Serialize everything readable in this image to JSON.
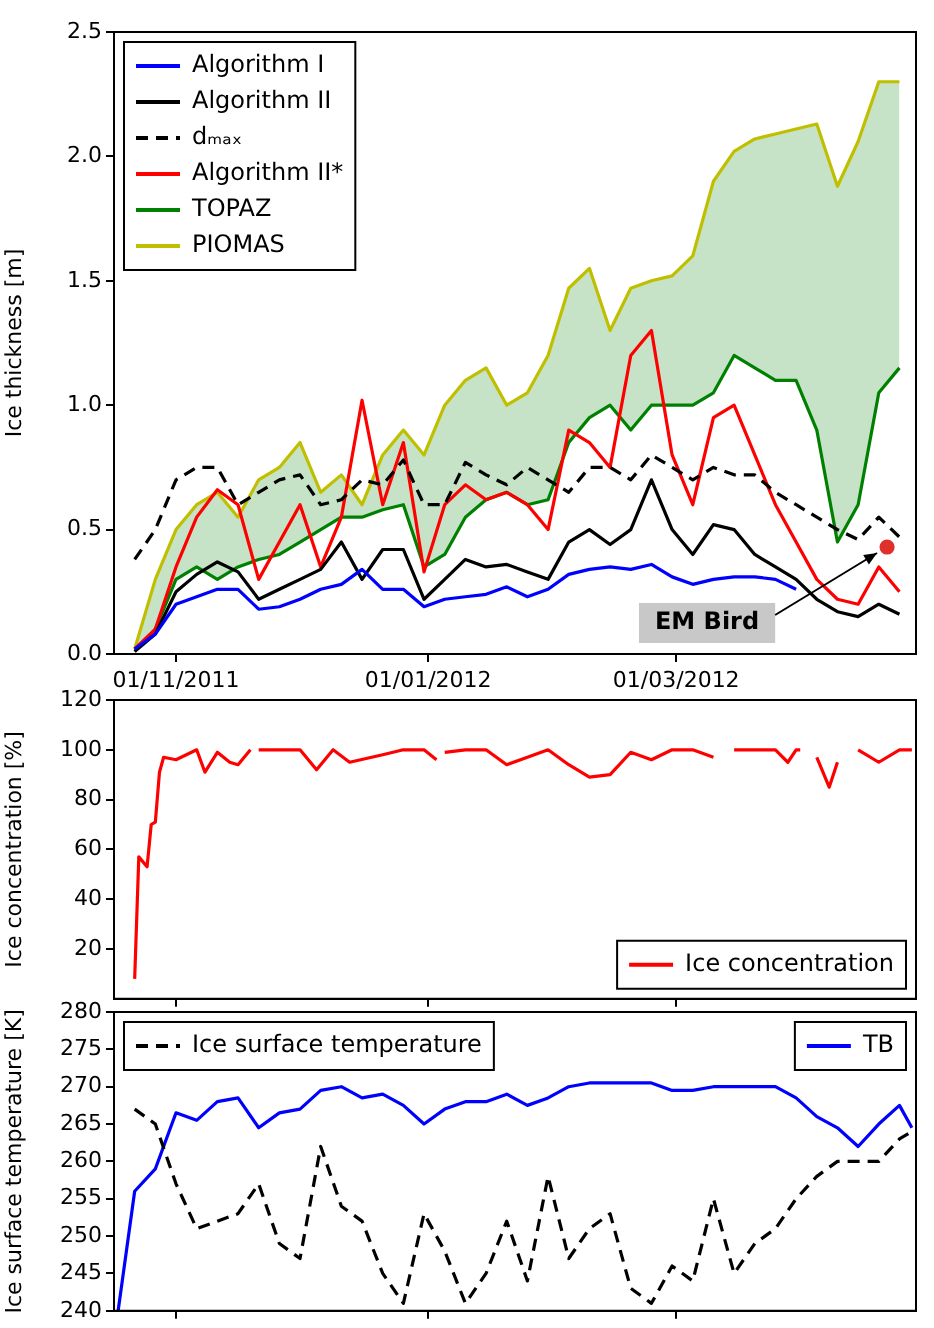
{
  "chart_data": [
    {
      "type": "line",
      "ylabel": "Ice thickness [m]",
      "x": [
        "2011-10-22",
        "2011-10-27",
        "2011-11-01",
        "2011-11-06",
        "2011-11-11",
        "2011-11-16",
        "2011-11-21",
        "2011-11-26",
        "2011-12-01",
        "2011-12-06",
        "2011-12-11",
        "2011-12-16",
        "2011-12-21",
        "2011-12-26",
        "2011-12-31",
        "2012-01-05",
        "2012-01-10",
        "2012-01-15",
        "2012-01-20",
        "2012-01-25",
        "2012-01-30",
        "2012-02-04",
        "2012-02-09",
        "2012-02-14",
        "2012-02-19",
        "2012-02-24",
        "2012-02-29",
        "2012-03-05",
        "2012-03-10",
        "2012-03-15",
        "2012-03-20",
        "2012-03-25",
        "2012-03-30",
        "2012-04-04",
        "2012-04-09",
        "2012-04-14",
        "2012-04-19",
        "2012-04-24"
      ],
      "series": [
        {
          "name": "Algorithm I",
          "color": "#0000ff",
          "values": [
            0.02,
            0.08,
            0.2,
            0.23,
            0.26,
            0.26,
            0.18,
            0.19,
            0.22,
            0.26,
            0.28,
            0.34,
            0.26,
            0.26,
            0.19,
            0.22,
            0.23,
            0.24,
            0.27,
            0.23,
            0.26,
            0.32,
            0.34,
            0.35,
            0.34,
            0.36,
            0.31,
            0.28,
            0.3,
            0.31,
            0.31,
            0.3,
            0.26,
            null,
            null,
            null,
            null,
            null
          ]
        },
        {
          "name": "Algorithm II",
          "color": "#000000",
          "values": [
            0.01,
            0.08,
            0.25,
            0.32,
            0.37,
            0.33,
            0.22,
            0.26,
            0.3,
            0.34,
            0.45,
            0.3,
            0.42,
            0.42,
            0.22,
            0.3,
            0.38,
            0.35,
            0.36,
            0.33,
            0.3,
            0.45,
            0.5,
            0.44,
            0.5,
            0.7,
            0.5,
            0.4,
            0.52,
            0.5,
            0.4,
            0.35,
            0.3,
            0.22,
            0.17,
            0.15,
            0.2,
            0.16
          ]
        },
        {
          "name": "dₘₐₓ",
          "color": "#000000",
          "line_style": "dashed",
          "values": [
            0.38,
            0.5,
            0.7,
            0.75,
            0.75,
            0.6,
            0.65,
            0.7,
            0.72,
            0.6,
            0.62,
            0.7,
            0.68,
            0.78,
            0.6,
            0.6,
            0.77,
            0.72,
            0.68,
            0.75,
            0.7,
            0.65,
            0.75,
            0.75,
            0.7,
            0.8,
            0.75,
            0.7,
            0.75,
            0.72,
            0.72,
            0.65,
            0.6,
            0.55,
            0.5,
            0.46,
            0.55,
            0.47
          ]
        },
        {
          "name": "Algorithm II*",
          "color": "#ff0000",
          "values": [
            0.02,
            0.1,
            0.35,
            0.55,
            0.66,
            0.6,
            0.3,
            0.45,
            0.6,
            0.35,
            0.55,
            1.02,
            0.6,
            0.85,
            0.33,
            0.6,
            0.68,
            0.62,
            0.65,
            0.6,
            0.5,
            0.9,
            0.85,
            0.75,
            1.2,
            1.3,
            0.8,
            0.6,
            0.95,
            1.0,
            0.8,
            0.6,
            0.45,
            0.3,
            0.22,
            0.2,
            0.35,
            0.25
          ]
        },
        {
          "name": "TOPAZ",
          "color": "#008000",
          "values": [
            0.01,
            0.1,
            0.3,
            0.35,
            0.3,
            0.35,
            0.38,
            0.4,
            0.45,
            0.5,
            0.55,
            0.55,
            0.58,
            0.6,
            0.35,
            0.4,
            0.55,
            0.62,
            0.65,
            0.6,
            0.62,
            0.85,
            0.95,
            1.0,
            0.9,
            1.0,
            1.0,
            1.0,
            1.05,
            1.2,
            1.15,
            1.1,
            1.1,
            0.9,
            0.45,
            0.6,
            1.05,
            1.15
          ],
          "lower": [
            0.01,
            0.1,
            0.3,
            0.35,
            0.3,
            0.35,
            0.38,
            0.4,
            0.45,
            0.5,
            0.55,
            0.55,
            0.58,
            0.6,
            0.35,
            0.4,
            0.55,
            0.62,
            0.65,
            0.6,
            0.62,
            0.85,
            0.95,
            1.0,
            0.9,
            1.0,
            1.0,
            1.0,
            1.05,
            1.2,
            1.15,
            1.1,
            1.1,
            0.9,
            0.45,
            0.6,
            1.05,
            1.15
          ],
          "upper": [
            0.02,
            0.3,
            0.5,
            0.6,
            0.65,
            0.55,
            0.7,
            0.75,
            0.85,
            0.65,
            0.72,
            0.6,
            0.8,
            0.9,
            0.8,
            1.0,
            1.1,
            1.15,
            1.0,
            1.05,
            1.2,
            1.47,
            1.55,
            1.3,
            1.47,
            1.5,
            1.52,
            1.6,
            1.9,
            2.02,
            2.07,
            2.09,
            2.11,
            2.13,
            1.88,
            2.06,
            2.3,
            2.3
          ]
        },
        {
          "name": "PIOMAS",
          "color": "#bfbf00",
          "values": [
            0.02,
            0.3,
            0.5,
            0.6,
            0.65,
            0.55,
            0.7,
            0.75,
            0.85,
            0.65,
            0.72,
            0.6,
            0.8,
            0.9,
            0.8,
            1.0,
            1.1,
            1.15,
            1.0,
            1.05,
            1.2,
            1.47,
            1.55,
            1.3,
            1.47,
            1.5,
            1.52,
            1.6,
            1.9,
            2.02,
            2.07,
            2.09,
            2.11,
            2.13,
            1.88,
            2.06,
            2.3,
            2.3
          ]
        },
        {
          "type": "scatter",
          "color": "#e0302a",
          "x": [
            "2012-04-21"
          ],
          "values": [
            0.43
          ]
        }
      ],
      "xlim": [
        "2011-10-17",
        "2012-04-28"
      ],
      "xticks": [
        {
          "value": "2011-11-01",
          "label": "01/11/2011"
        },
        {
          "value": "2012-01-01",
          "label": "01/01/2012"
        },
        {
          "value": "2012-03-01",
          "label": "01/03/2012"
        }
      ],
      "ylim": [
        0,
        2.5
      ],
      "yticks": [
        {
          "value": 0,
          "label": "0.0"
        },
        {
          "value": 0.5,
          "label": "0.5"
        },
        {
          "value": 1,
          "label": "1.0"
        },
        {
          "value": 1.5,
          "label": "1.5"
        },
        {
          "value": 2,
          "label": "2.0"
        },
        {
          "value": 2.5,
          "label": "2.5"
        }
      ],
      "legend": "top left",
      "annotations": [
        {
          "text": "EM Bird",
          "x": "2012-04-21",
          "y": 0.43
        }
      ]
    },
    {
      "type": "line",
      "ylabel": "Ice concentration [%]",
      "series": [
        {
          "name": "Ice concentration",
          "color": "#ff0000",
          "x": [
            "2011-10-22",
            "2011-10-23",
            "2011-10-25",
            "2011-10-26",
            "2011-10-27",
            "2011-10-28",
            "2011-10-29",
            "2011-11-01",
            "2011-11-06",
            "2011-11-08",
            "2011-11-11",
            "2011-11-14",
            "2011-11-16",
            "2011-11-19",
            "2011-11-20",
            "2011-11-21",
            "2011-11-26",
            "2011-12-01",
            "2011-12-05",
            "2011-12-09",
            "2011-12-13",
            "2011-12-21",
            "2011-12-26",
            "2011-12-31",
            "2012-01-03",
            "2012-01-04",
            "2012-01-05",
            "2012-01-10",
            "2012-01-15",
            "2012-01-20",
            "2012-01-25",
            "2012-01-30",
            "2012-02-04",
            "2012-02-09",
            "2012-02-14",
            "2012-02-19",
            "2012-02-24",
            "2012-02-29",
            "2012-03-05",
            "2012-03-10",
            "2012-03-11",
            "2012-03-15",
            "2012-03-20",
            "2012-03-25",
            "2012-03-28",
            "2012-03-30",
            "2012-03-31",
            "2012-04-01",
            "2012-04-04",
            "2012-04-07",
            "2012-04-09",
            "2012-04-10",
            "2012-04-14",
            "2012-04-19",
            "2012-04-24",
            "2012-04-27"
          ],
          "values": [
            8,
            57,
            53,
            70,
            71,
            91,
            97,
            96,
            100,
            91,
            99,
            95,
            94,
            100,
            null,
            100,
            100,
            100,
            92,
            100,
            95,
            98,
            100,
            100,
            96,
            null,
            99,
            100,
            100,
            94,
            97,
            100,
            94,
            89,
            90,
            99,
            96,
            100,
            100,
            97,
            null,
            100,
            100,
            100,
            95,
            100,
            100,
            null,
            97,
            85,
            95,
            null,
            100,
            95,
            100,
            100
          ]
        }
      ],
      "xlim": [
        "2011-10-17",
        "2012-04-28"
      ],
      "xticks": [
        {
          "value": "2011-11-01",
          "label": null
        },
        {
          "value": "2012-01-01",
          "label": null
        },
        {
          "value": "2012-03-01",
          "label": null
        }
      ],
      "ylim": [
        0,
        120
      ],
      "yticks": [
        20,
        40,
        60,
        80,
        100,
        120
      ],
      "tick_labels": "y",
      "legend": "bottom right"
    },
    {
      "type": "line",
      "ylabel": "Ice surface temperature [K]",
      "series": [
        {
          "name": "Ice surface temperature",
          "color": "#000000",
          "line_style": "dashed",
          "x": [
            "2011-10-22",
            "2011-10-27",
            "2011-11-01",
            "2011-11-06",
            "2011-11-11",
            "2011-11-16",
            "2011-11-21",
            "2011-11-26",
            "2011-12-01",
            "2011-12-06",
            "2011-12-11",
            "2011-12-16",
            "2011-12-21",
            "2011-12-26",
            "2011-12-31",
            "2012-01-05",
            "2012-01-10",
            "2012-01-15",
            "2012-01-20",
            "2012-01-25",
            "2012-01-30",
            "2012-02-04",
            "2012-02-09",
            "2012-02-14",
            "2012-02-19",
            "2012-02-24",
            "2012-02-29",
            "2012-03-05",
            "2012-03-10",
            "2012-03-15",
            "2012-03-20",
            "2012-03-25",
            "2012-03-30",
            "2012-04-04",
            "2012-04-09",
            "2012-04-14",
            "2012-04-19",
            "2012-04-24",
            "2012-04-27"
          ],
          "values": [
            267,
            265,
            257,
            251,
            252,
            253,
            257,
            249,
            247,
            262,
            254,
            252,
            245,
            241,
            253,
            248,
            241,
            245,
            252,
            244,
            258,
            247,
            251,
            253,
            243,
            241,
            246,
            244,
            255,
            245,
            249,
            251,
            255,
            258,
            260,
            260,
            260,
            263,
            264
          ]
        },
        {
          "name": "TB",
          "color": "#0000ff",
          "x": [
            "2011-10-18",
            "2011-10-22",
            "2011-10-27",
            "2011-10-31",
            "2011-11-01",
            "2011-11-06",
            "2011-11-11",
            "2011-11-16",
            "2011-11-21",
            "2011-11-26",
            "2011-12-01",
            "2011-12-06",
            "2011-12-11",
            "2011-12-16",
            "2011-12-21",
            "2011-12-26",
            "2011-12-31",
            "2012-01-05",
            "2012-01-10",
            "2012-01-15",
            "2012-01-20",
            "2012-01-25",
            "2012-01-30",
            "2012-02-04",
            "2012-02-09",
            "2012-02-14",
            "2012-02-19",
            "2012-02-24",
            "2012-02-29",
            "2012-03-05",
            "2012-03-10",
            "2012-03-15",
            "2012-03-20",
            "2012-03-25",
            "2012-03-30",
            "2012-04-04",
            "2012-04-09",
            "2012-04-14",
            "2012-04-19",
            "2012-04-24",
            "2012-04-27"
          ],
          "values": [
            240,
            256,
            259,
            265,
            266.5,
            265.5,
            268,
            268.5,
            264.5,
            266.5,
            267,
            269.5,
            270,
            268.5,
            269,
            267.5,
            265,
            267,
            268,
            268,
            269,
            267.5,
            268.5,
            270,
            270.5,
            270.5,
            270.5,
            270.5,
            269.5,
            269.5,
            270,
            270,
            270,
            270,
            268.5,
            266,
            264.5,
            262,
            265,
            267.5,
            264.5
          ]
        }
      ],
      "xlim": [
        "2011-10-17",
        "2012-04-28"
      ],
      "xticks": [
        {
          "value": "2011-11-01",
          "label": null
        },
        {
          "value": "2012-01-01",
          "label": null
        },
        {
          "value": "2012-03-01",
          "label": null
        }
      ],
      "ylim": [
        240,
        280
      ],
      "yticks": [
        240,
        245,
        250,
        255,
        260,
        265,
        270,
        275,
        280
      ],
      "tick_labels": "y",
      "legend": "top"
    }
  ]
}
